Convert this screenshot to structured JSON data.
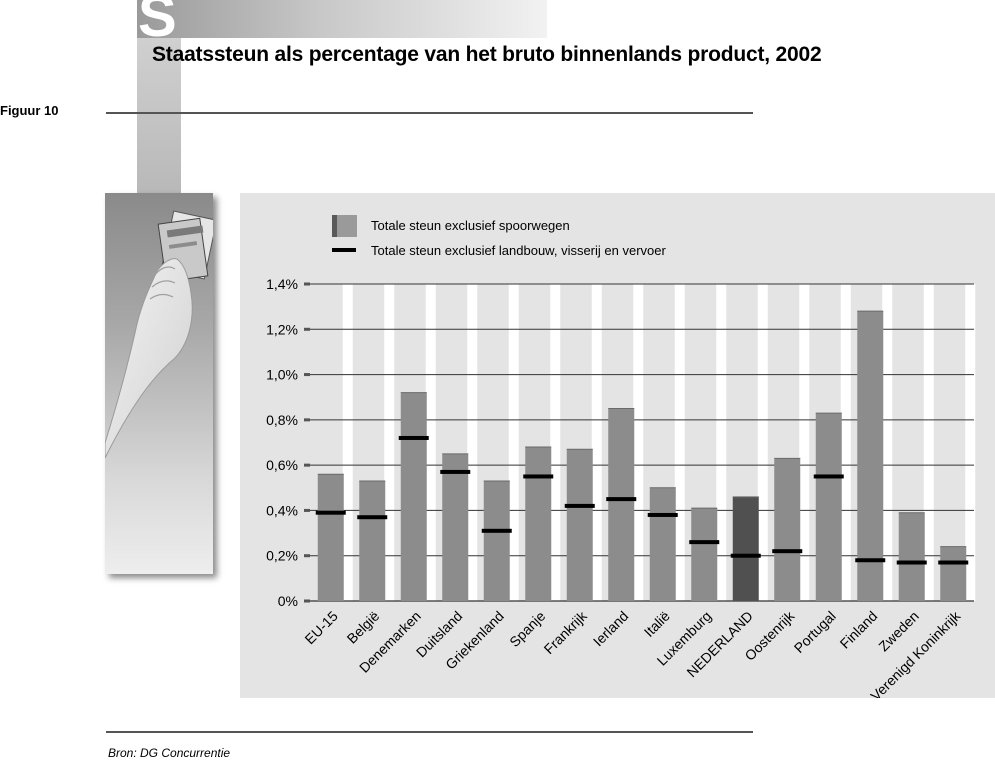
{
  "header": {
    "section_letter": "S",
    "title": "Staatssteun als percentage van het bruto binnenlands product, 2002",
    "figure_label": "Figuur 10"
  },
  "footer": {
    "source": "Bron: DG Concurrentie"
  },
  "colors": {
    "bar": "#8c8c8c",
    "bar_highlight": "#505050",
    "marker": "#000000",
    "panel_background": "#e4e4e4"
  },
  "chart_data": {
    "type": "bar",
    "title": "Staatssteun als percentage van het bruto binnenlands product, 2002",
    "xlabel": "",
    "ylabel": "",
    "ylim": [
      0,
      1.4
    ],
    "yticks": [
      0,
      0.2,
      0.4,
      0.6,
      0.8,
      1.0,
      1.2,
      1.4
    ],
    "ytick_labels": [
      "0%",
      "0,2%",
      "0,4%",
      "0,6%",
      "0,8%",
      "1,0%",
      "1,2%",
      "1,4%"
    ],
    "grid": true,
    "legend_position": "top-left",
    "highlight_category": "NEDERLAND",
    "categories": [
      "EU-15",
      "België",
      "Denemarken",
      "Duitsland",
      "Griekenland",
      "Spanje",
      "Frankrijk",
      "Ierland",
      "Italië",
      "Luxemburg",
      "NEDERLAND",
      "Oostenrijk",
      "Portugal",
      "Finland",
      "Zweden",
      "Verenigd Koninkrijk"
    ],
    "series": [
      {
        "name": "Totale steun exclusief spoorwegen",
        "style": "bar",
        "values": [
          0.56,
          0.53,
          0.92,
          0.65,
          0.53,
          0.68,
          0.67,
          0.85,
          0.5,
          0.41,
          0.46,
          0.63,
          0.83,
          1.28,
          0.39,
          0.24
        ]
      },
      {
        "name": "Totale steun exclusief landbouw, visserij en vervoer",
        "style": "marker",
        "values": [
          0.39,
          0.37,
          0.72,
          0.57,
          0.31,
          0.55,
          0.42,
          0.45,
          0.38,
          0.26,
          0.2,
          0.22,
          0.55,
          0.18,
          0.17,
          0.17
        ]
      }
    ]
  }
}
